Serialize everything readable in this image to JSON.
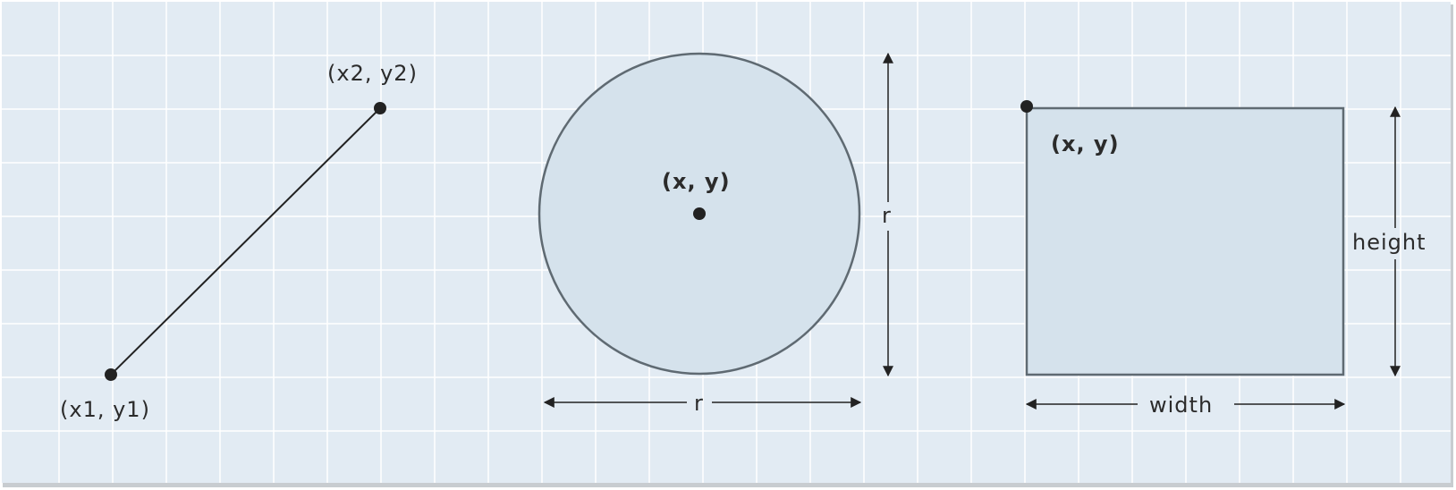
{
  "colors": {
    "background": "#e2ebf3",
    "grid": "#ffffff",
    "shape_fill": "#d5e2ec",
    "shape_stroke": "#5f6a72",
    "line": "#222222",
    "point": "#222222",
    "text": "#2b2b2b",
    "frame_shadow": "#c8ccd0"
  },
  "line_shape": {
    "start_label": "(x1, y1)",
    "end_label": "(x2, y2)"
  },
  "circle_shape": {
    "center_label": "(x, y)",
    "horizontal_dimension_label": "r",
    "vertical_dimension_label": "r"
  },
  "rect_shape": {
    "origin_label": "(x, y)",
    "width_label": "width",
    "height_label": "height"
  }
}
